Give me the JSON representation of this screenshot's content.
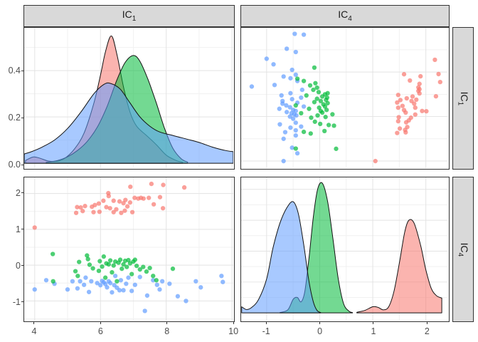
{
  "strips": {
    "col1": {
      "text": "IC",
      "sub": "1"
    },
    "col2": {
      "text": "IC",
      "sub": "4"
    },
    "row1": {
      "text": "IC",
      "sub": "1"
    },
    "row2": {
      "text": "IC",
      "sub": "4"
    }
  },
  "colors": {
    "group1": "#F8766D",
    "group2": "#00BA38",
    "group3": "#619CFF",
    "strip_bg": "#d9d9d9",
    "panel_bg": "#ffffff",
    "panel_border": "#333333",
    "grid_major": "#e3e3e3",
    "grid_minor": "#f1f1f1",
    "tick_text": "#4d4d4d",
    "density_stroke": "#111111"
  },
  "chart_data": {
    "type": "scatter",
    "subtype": "pairs-matrix-with-density-diagonal",
    "variables": [
      "IC1",
      "IC4"
    ],
    "legend_position": "none",
    "grid": "on",
    "panels": [
      {
        "row": 1,
        "col": 1,
        "type": "density",
        "var": "IC1"
      },
      {
        "row": 1,
        "col": 2,
        "type": "scatter",
        "x": "IC4",
        "y": "IC1"
      },
      {
        "row": 2,
        "col": 1,
        "type": "scatter",
        "x": "IC1",
        "y": "IC4"
      },
      {
        "row": 2,
        "col": 2,
        "type": "density",
        "var": "IC4"
      }
    ],
    "groups": [
      {
        "name": "group1",
        "color": "#F8766D"
      },
      {
        "name": "group2",
        "color": "#00BA38"
      },
      {
        "name": "group3",
        "color": "#619CFF"
      }
    ],
    "axes": {
      "ic1": {
        "tick_labels": [
          "4",
          "6",
          "8",
          "10"
        ],
        "tick_values": [
          4,
          6,
          8,
          10
        ],
        "minor": [
          5,
          7,
          9
        ],
        "domain_x": [
          3.68,
          10.04
        ],
        "domain_y": [
          3.68,
          9.99
        ]
      },
      "ic4": {
        "tick_labels": [
          "-1",
          "0",
          "1",
          "2"
        ],
        "tick_values": [
          -1,
          0,
          1,
          2
        ],
        "minor": [
          -0.5,
          0.5,
          1.5
        ],
        "domain_x": [
          -1.48,
          2.42
        ],
        "domain_y": [
          -1.55,
          2.45
        ]
      },
      "density_ic1": {
        "tick_labels": [
          "0.0",
          "0.2",
          "0.4"
        ],
        "tick_values": [
          0,
          0.2,
          0.4
        ],
        "minor": [
          0.1,
          0.3,
          0.5
        ],
        "max": 0.585
      },
      "density_ic4": {
        "tick_labels": [],
        "major": [
          0.5,
          1,
          1.5,
          2
        ],
        "minor": [
          0.25,
          0.75,
          1.25,
          1.75
        ],
        "max": 2.19
      }
    },
    "points_format": [
      "IC1",
      "IC4"
    ],
    "points": {
      "group1": [
        [
          4.0,
          1.05
        ],
        [
          5.26,
          1.46
        ],
        [
          5.29,
          1.62
        ],
        [
          5.4,
          1.61
        ],
        [
          5.46,
          1.51
        ],
        [
          5.53,
          1.65
        ],
        [
          5.74,
          1.63
        ],
        [
          5.79,
          1.48
        ],
        [
          5.83,
          1.68
        ],
        [
          5.95,
          1.72
        ],
        [
          5.97,
          1.49
        ],
        [
          6.09,
          1.8
        ],
        [
          6.18,
          1.62
        ],
        [
          6.24,
          2.01
        ],
        [
          6.25,
          1.93
        ],
        [
          6.29,
          1.59
        ],
        [
          6.4,
          1.8
        ],
        [
          6.4,
          1.48
        ],
        [
          6.48,
          1.56
        ],
        [
          6.58,
          1.78
        ],
        [
          6.63,
          1.46
        ],
        [
          6.7,
          1.73
        ],
        [
          6.74,
          1.52
        ],
        [
          6.76,
          1.82
        ],
        [
          6.82,
          1.64
        ],
        [
          6.9,
          1.75
        ],
        [
          6.91,
          2.19
        ],
        [
          6.97,
          1.48
        ],
        [
          7.04,
          1.88
        ],
        [
          7.15,
          1.86
        ],
        [
          7.23,
          1.88
        ],
        [
          7.31,
          1.86
        ],
        [
          7.47,
          1.88
        ],
        [
          7.55,
          2.27
        ],
        [
          7.62,
          1.7
        ],
        [
          7.81,
          1.9
        ],
        [
          7.9,
          1.59
        ],
        [
          7.91,
          2.24
        ],
        [
          8.55,
          2.17
        ]
      ],
      "group2": [
        [
          4.55,
          0.31
        ],
        [
          4.56,
          -0.45
        ],
        [
          5.24,
          -0.17
        ],
        [
          5.31,
          -0.3
        ],
        [
          5.35,
          0.09
        ],
        [
          5.59,
          0.27
        ],
        [
          5.62,
          0.17
        ],
        [
          5.67,
          0.01
        ],
        [
          5.77,
          -0.09
        ],
        [
          5.95,
          -0.16
        ],
        [
          5.98,
          0.11
        ],
        [
          6.05,
          -0.04
        ],
        [
          6.1,
          0.24
        ],
        [
          6.15,
          -0.35
        ],
        [
          6.18,
          0.05
        ],
        [
          6.25,
          0.02
        ],
        [
          6.3,
          0.13
        ],
        [
          6.35,
          -0.2
        ],
        [
          6.4,
          -0.01
        ],
        [
          6.45,
          0.1
        ],
        [
          6.5,
          -0.45
        ],
        [
          6.55,
          0.07
        ],
        [
          6.6,
          0.15
        ],
        [
          6.65,
          -0.1
        ],
        [
          6.7,
          0.02
        ],
        [
          6.75,
          0.12
        ],
        [
          6.8,
          -0.05
        ],
        [
          6.85,
          0.14
        ],
        [
          6.9,
          0.05
        ],
        [
          6.95,
          -0.25
        ],
        [
          7.0,
          0.1
        ],
        [
          7.05,
          0.15
        ],
        [
          7.1,
          -0.02
        ],
        [
          7.2,
          -0.12
        ],
        [
          7.3,
          -0.05
        ],
        [
          7.4,
          -0.18
        ],
        [
          7.5,
          -0.08
        ],
        [
          7.6,
          -0.3
        ],
        [
          7.7,
          -0.42
        ],
        [
          8.2,
          -0.1
        ]
      ],
      "group3": [
        [
          4.0,
          -0.68
        ],
        [
          4.35,
          -0.42
        ],
        [
          4.6,
          -0.52
        ],
        [
          5.0,
          -0.68
        ],
        [
          5.15,
          -0.45
        ],
        [
          5.3,
          -0.65
        ],
        [
          5.38,
          -0.45
        ],
        [
          5.5,
          -0.55
        ],
        [
          5.55,
          -0.35
        ],
        [
          5.65,
          -0.75
        ],
        [
          5.72,
          -0.45
        ],
        [
          5.9,
          -0.5
        ],
        [
          6.0,
          -0.56
        ],
        [
          6.05,
          -0.44
        ],
        [
          6.1,
          -0.48
        ],
        [
          6.15,
          -0.53
        ],
        [
          6.2,
          -0.62
        ],
        [
          6.25,
          -0.45
        ],
        [
          6.3,
          -0.5
        ],
        [
          6.35,
          -0.76
        ],
        [
          6.42,
          -0.56
        ],
        [
          6.45,
          -0.3
        ],
        [
          6.5,
          -0.63
        ],
        [
          6.58,
          -0.7
        ],
        [
          6.62,
          -0.42
        ],
        [
          6.7,
          -0.7
        ],
        [
          6.78,
          -0.52
        ],
        [
          6.85,
          -0.35
        ],
        [
          6.95,
          -0.72
        ],
        [
          7.05,
          -0.55
        ],
        [
          7.2,
          -0.33
        ],
        [
          7.35,
          -1.28
        ],
        [
          7.42,
          -0.85
        ],
        [
          7.6,
          -0.42
        ],
        [
          7.72,
          -0.55
        ],
        [
          7.8,
          -0.68
        ],
        [
          7.88,
          -0.45
        ],
        [
          8.1,
          -0.52
        ],
        [
          8.35,
          -0.87
        ],
        [
          8.6,
          -1.0
        ],
        [
          8.9,
          -0.45
        ],
        [
          9.05,
          -0.62
        ],
        [
          9.68,
          -0.3
        ],
        [
          9.72,
          -0.47
        ]
      ]
    },
    "densities": {
      "IC1": {
        "group1": [
          [
            3.72,
            0.012
          ],
          [
            3.95,
            0.027
          ],
          [
            4.15,
            0.022
          ],
          [
            4.4,
            0.01
          ],
          [
            4.65,
            0.008
          ],
          [
            4.9,
            0.02
          ],
          [
            5.2,
            0.06
          ],
          [
            5.5,
            0.13
          ],
          [
            5.8,
            0.26
          ],
          [
            6.0,
            0.38
          ],
          [
            6.15,
            0.48
          ],
          [
            6.33,
            0.55
          ],
          [
            6.5,
            0.47
          ],
          [
            6.7,
            0.33
          ],
          [
            6.9,
            0.22
          ],
          [
            7.1,
            0.16
          ],
          [
            7.4,
            0.12
          ],
          [
            7.7,
            0.08
          ],
          [
            8.0,
            0.035
          ],
          [
            8.3,
            0.012
          ],
          [
            8.5,
            0.004
          ]
        ],
        "group2": [
          [
            4.35,
            0.004
          ],
          [
            4.7,
            0.012
          ],
          [
            5.0,
            0.028
          ],
          [
            5.3,
            0.055
          ],
          [
            5.6,
            0.095
          ],
          [
            5.9,
            0.155
          ],
          [
            6.2,
            0.245
          ],
          [
            6.5,
            0.36
          ],
          [
            6.75,
            0.435
          ],
          [
            7.0,
            0.465
          ],
          [
            7.2,
            0.44
          ],
          [
            7.45,
            0.36
          ],
          [
            7.7,
            0.26
          ],
          [
            7.95,
            0.15
          ],
          [
            8.2,
            0.065
          ],
          [
            8.45,
            0.02
          ],
          [
            8.65,
            0.005
          ]
        ],
        "group3": [
          [
            3.68,
            0.04
          ],
          [
            3.9,
            0.05
          ],
          [
            4.2,
            0.068
          ],
          [
            4.6,
            0.1
          ],
          [
            5.0,
            0.15
          ],
          [
            5.4,
            0.22
          ],
          [
            5.8,
            0.3
          ],
          [
            6.1,
            0.34
          ],
          [
            6.3,
            0.345
          ],
          [
            6.6,
            0.32
          ],
          [
            6.9,
            0.26
          ],
          [
            7.2,
            0.2
          ],
          [
            7.5,
            0.16
          ],
          [
            7.8,
            0.135
          ],
          [
            8.2,
            0.12
          ],
          [
            8.6,
            0.105
          ],
          [
            9.0,
            0.09
          ],
          [
            9.4,
            0.07
          ],
          [
            9.8,
            0.055
          ],
          [
            10.04,
            0.05
          ]
        ]
      },
      "IC4": {
        "group1": [
          [
            0.7,
            0.01
          ],
          [
            0.85,
            0.04
          ],
          [
            1.0,
            0.1
          ],
          [
            1.1,
            0.09
          ],
          [
            1.2,
            0.05
          ],
          [
            1.3,
            0.1
          ],
          [
            1.4,
            0.35
          ],
          [
            1.5,
            0.8
          ],
          [
            1.6,
            1.3
          ],
          [
            1.68,
            1.5
          ],
          [
            1.78,
            1.45
          ],
          [
            1.9,
            1.1
          ],
          [
            2.0,
            0.7
          ],
          [
            2.1,
            0.4
          ],
          [
            2.2,
            0.28
          ],
          [
            2.3,
            0.24
          ]
        ],
        "group2": [
          [
            -0.75,
            0.005
          ],
          [
            -0.6,
            0.05
          ],
          [
            -0.5,
            0.22
          ],
          [
            -0.42,
            0.25
          ],
          [
            -0.35,
            0.18
          ],
          [
            -0.28,
            0.35
          ],
          [
            -0.2,
            0.9
          ],
          [
            -0.12,
            1.55
          ],
          [
            -0.04,
            2.0
          ],
          [
            0.05,
            2.1
          ],
          [
            0.15,
            1.8
          ],
          [
            0.25,
            1.2
          ],
          [
            0.35,
            0.55
          ],
          [
            0.45,
            0.15
          ],
          [
            0.55,
            0.03
          ],
          [
            0.62,
            0.005
          ]
        ],
        "group3": [
          [
            -1.47,
            0.1
          ],
          [
            -1.38,
            0.055
          ],
          [
            -1.28,
            0.09
          ],
          [
            -1.15,
            0.22
          ],
          [
            -1.0,
            0.55
          ],
          [
            -0.88,
            1.05
          ],
          [
            -0.75,
            1.45
          ],
          [
            -0.62,
            1.7
          ],
          [
            -0.5,
            1.8
          ],
          [
            -0.4,
            1.6
          ],
          [
            -0.3,
            1.1
          ],
          [
            -0.2,
            0.5
          ],
          [
            -0.12,
            0.18
          ],
          [
            -0.05,
            0.04
          ],
          [
            0.02,
            0.005
          ]
        ]
      }
    }
  }
}
